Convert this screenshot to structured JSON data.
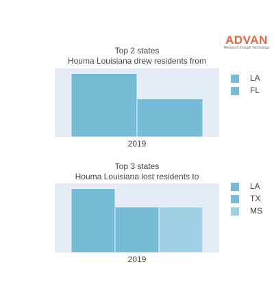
{
  "logo": {
    "name": "ADVAN",
    "tagline": "Research through Technology"
  },
  "chart_data": [
    {
      "type": "bar",
      "title_lines": [
        "Top 2 states",
        "Houma Louisiana drew residents from"
      ],
      "x": "2019",
      "series": [
        {
          "name": "LA",
          "value": 100,
          "color": "#74bbd7"
        },
        {
          "name": "FL",
          "value": 60,
          "color": "#74bbd7"
        }
      ],
      "ylim": [
        0,
        108
      ],
      "legend_position": "right",
      "grid": false
    },
    {
      "type": "bar",
      "title_lines": [
        "Top 3 states",
        "Houma Louisiana lost residents to"
      ],
      "x": "2019",
      "series": [
        {
          "name": "LA",
          "value": 100,
          "color": "#74bbd7"
        },
        {
          "name": "TX",
          "value": 71,
          "color": "#74bbd7"
        },
        {
          "name": "MS",
          "value": 71,
          "color": "#9fd1e4"
        }
      ],
      "ylim": [
        0,
        108
      ],
      "legend_position": "right",
      "grid": false
    }
  ]
}
